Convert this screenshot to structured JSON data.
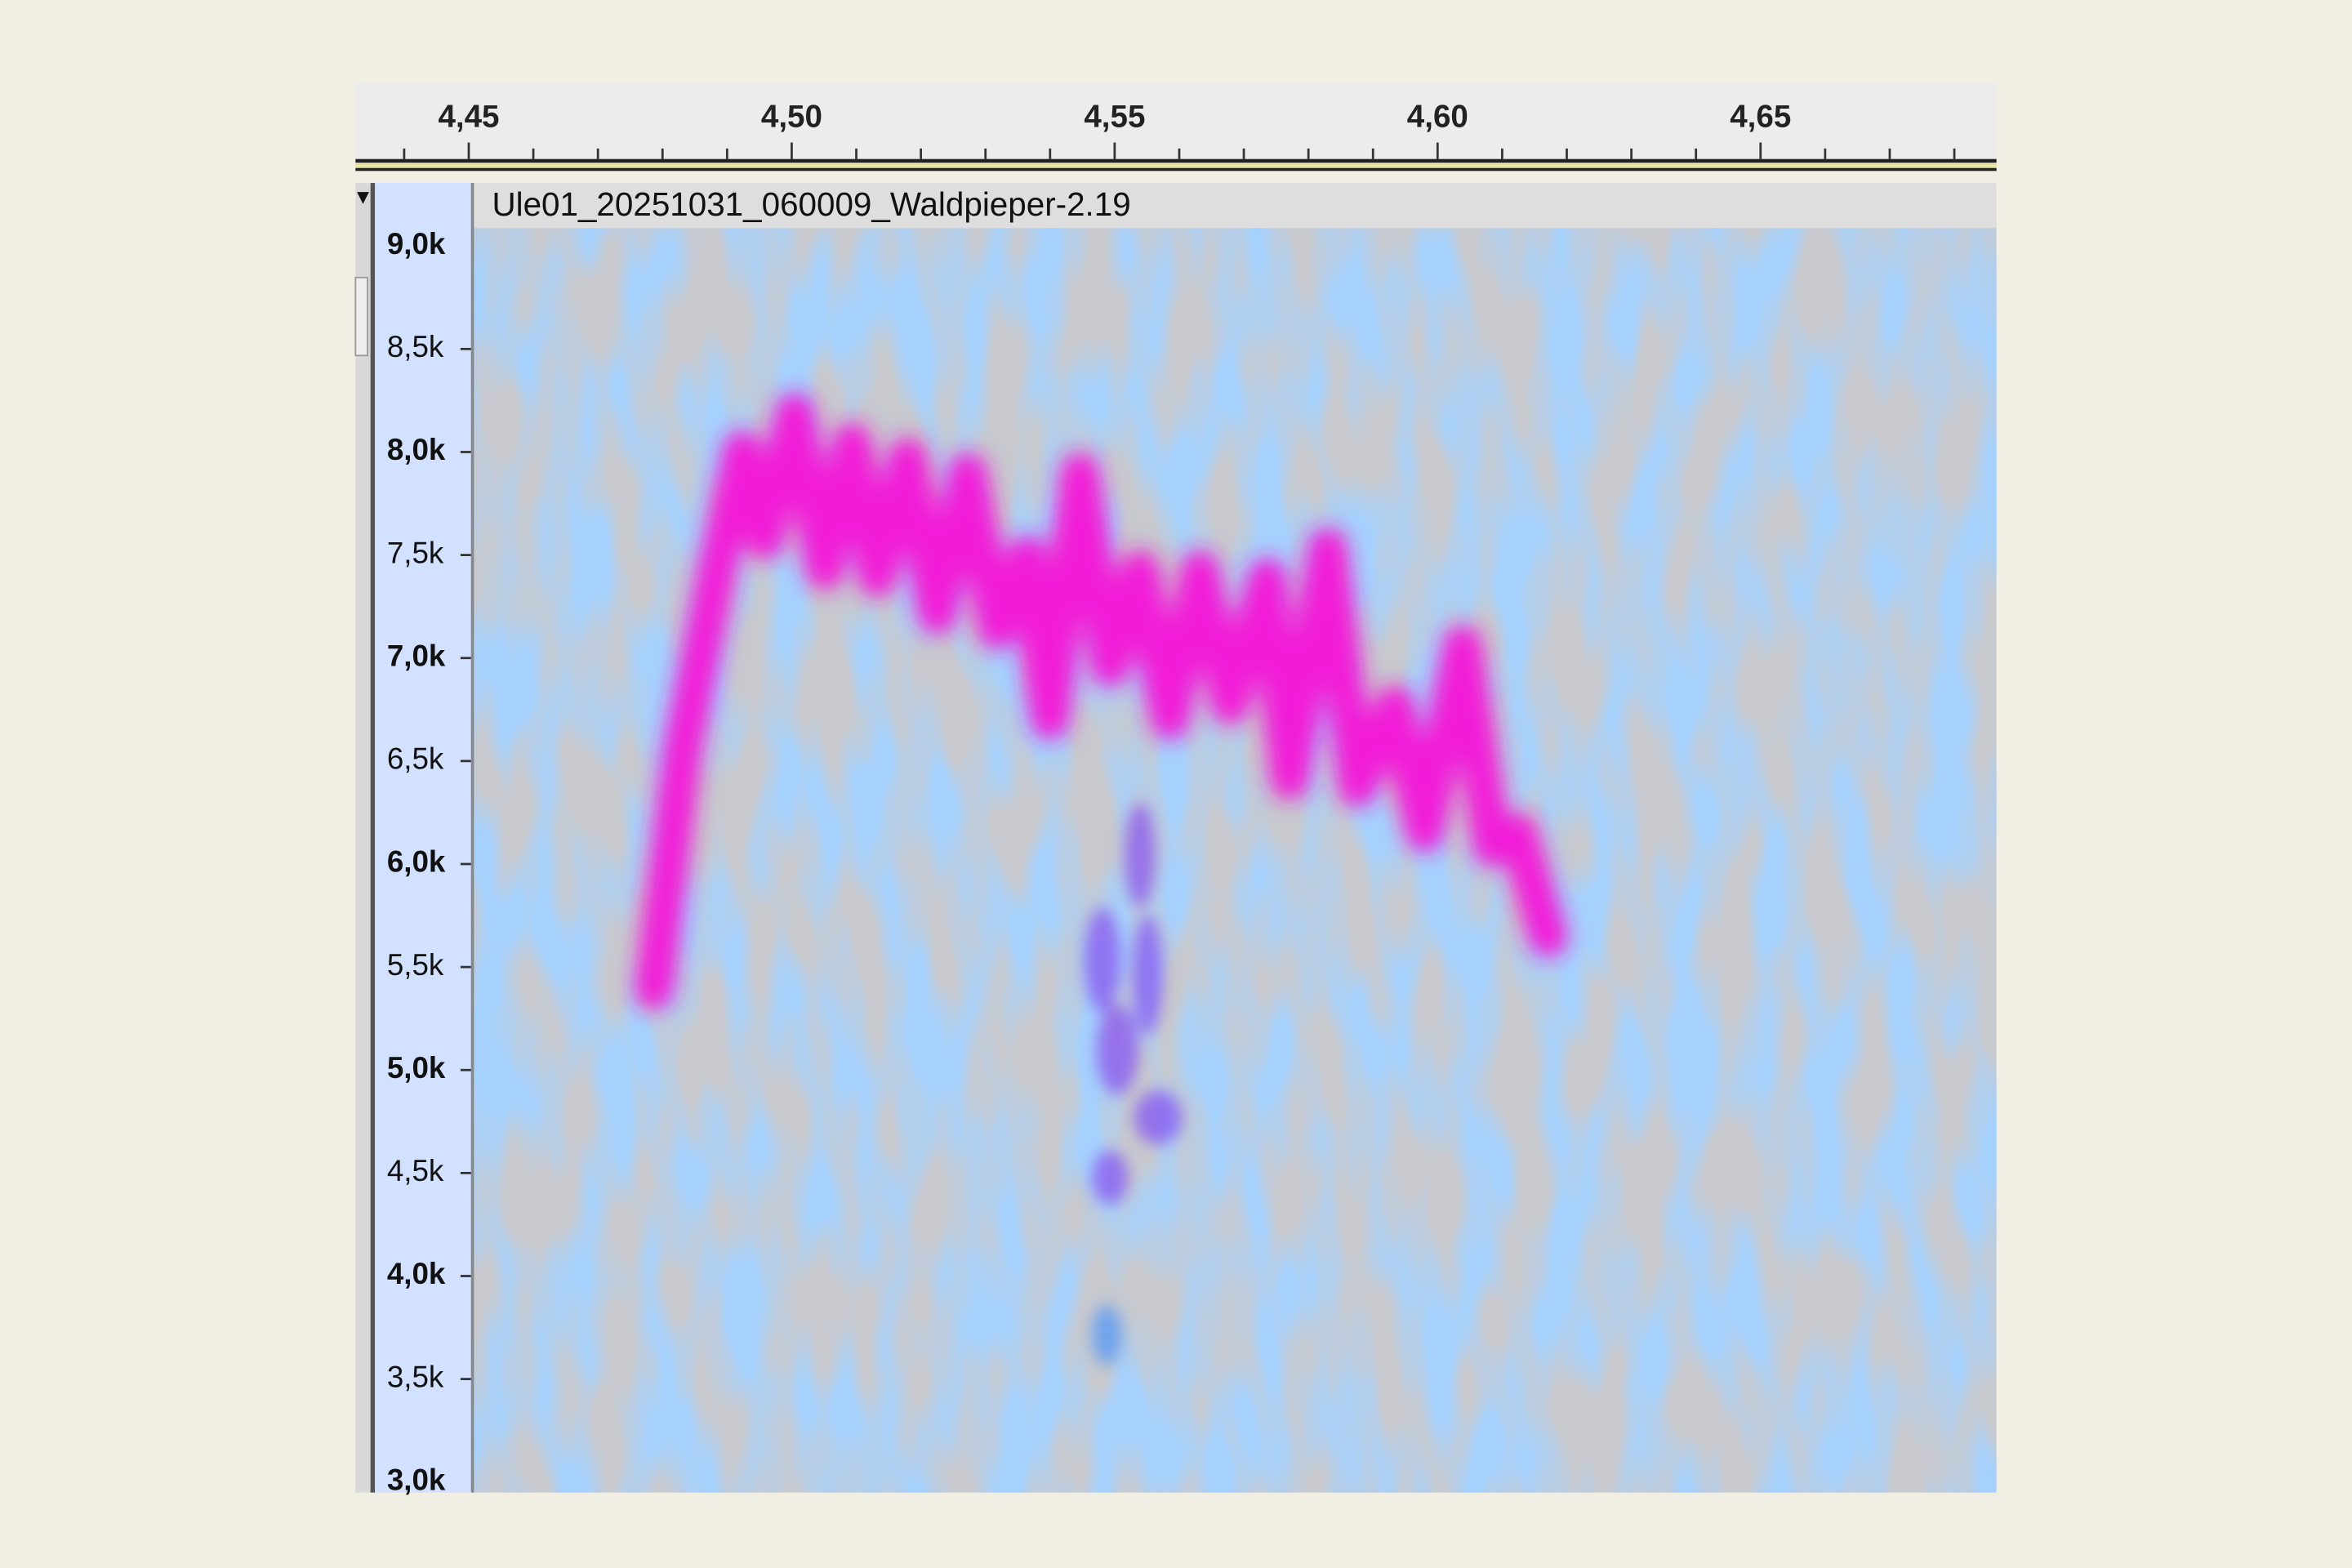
{
  "ruler": {
    "labels": [
      "4,45",
      "4,50",
      "4,55",
      "4,60",
      "4,65"
    ]
  },
  "track": {
    "name": "Ule01_20251031_060009_Waldpieper-2.19"
  },
  "frequency_axis": {
    "labels": [
      "9,0k",
      "8,5k",
      "8,0k",
      "7,5k",
      "7,0k",
      "6,5k",
      "6,0k",
      "5,5k",
      "5,0k",
      "4,5k",
      "4,0k",
      "3,5k",
      "3,0k"
    ]
  }
}
